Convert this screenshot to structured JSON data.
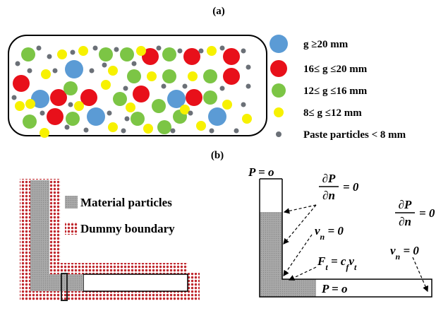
{
  "panel_a": {
    "label": "(a)",
    "legend": [
      "g ≥20 mm",
      "16≤ g ≤20 mm",
      "12≤ g ≤16 mm",
      "8≤ g ≤12 mm",
      "Paste particles < 8 mm"
    ]
  },
  "panel_b": {
    "label": "(b)",
    "left_legend": [
      "Material particles",
      "Dummy boundary"
    ],
    "inlet": {
      "segments": [
        {
          "text": "P"
        },
        {
          "text": " = o"
        }
      ]
    },
    "wall_gradient": {
      "numerator": "∂P",
      "denominator": "∂n",
      "rhs": "= 0"
    },
    "wall_normal_velocity": {
      "segments": [
        {
          "text": "v"
        },
        {
          "text": "n",
          "sub": true
        },
        {
          "text": " = 0"
        }
      ]
    },
    "wall_friction": {
      "segments": [
        {
          "text": "F"
        },
        {
          "text": "t",
          "sub": true
        },
        {
          "text": " = c"
        },
        {
          "text": "f",
          "sub": true
        },
        {
          "text": "v"
        },
        {
          "text": "t",
          "sub": true
        }
      ]
    },
    "end_gradient": {
      "numerator": "∂P",
      "denominator": "∂n",
      "rhs": "= 0"
    },
    "end_normal_velocity": {
      "segments": [
        {
          "text": "v"
        },
        {
          "text": "n",
          "sub": true
        },
        {
          "text": " = 0"
        }
      ]
    },
    "outlet": {
      "segments": [
        {
          "text": "P"
        },
        {
          "text": " = o"
        }
      ]
    }
  }
}
